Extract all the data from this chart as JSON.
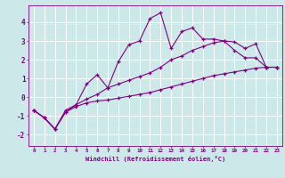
{
  "xlabel": "Windchill (Refroidissement éolien,°C)",
  "background_color": "#cce8e8",
  "line_color": "#800080",
  "grid_color": "#ffffff",
  "xlim": [
    -0.5,
    23.5
  ],
  "ylim": [
    -2.6,
    4.9
  ],
  "xticks": [
    0,
    1,
    2,
    3,
    4,
    5,
    6,
    7,
    8,
    9,
    10,
    11,
    12,
    13,
    14,
    15,
    16,
    17,
    18,
    19,
    20,
    21,
    22,
    23
  ],
  "yticks": [
    -2,
    -1,
    0,
    1,
    2,
    3,
    4
  ],
  "series": [
    {
      "x": [
        0,
        1,
        2,
        3,
        4,
        5,
        6,
        7,
        8,
        9,
        10,
        11,
        12,
        13,
        14,
        15,
        16,
        17,
        18,
        19,
        20,
        21,
        22,
        23
      ],
      "y": [
        -0.7,
        -1.1,
        -1.7,
        -0.8,
        -0.5,
        -0.3,
        -0.2,
        -0.15,
        -0.05,
        0.05,
        0.15,
        0.25,
        0.4,
        0.55,
        0.7,
        0.85,
        1.0,
        1.15,
        1.25,
        1.35,
        1.45,
        1.55,
        1.6,
        1.6
      ]
    },
    {
      "x": [
        0,
        1,
        2,
        3,
        4,
        5,
        6,
        7,
        8,
        9,
        10,
        11,
        12,
        13,
        14,
        15,
        16,
        17,
        18,
        19,
        20,
        21,
        22,
        23
      ],
      "y": [
        -0.7,
        -1.1,
        -1.7,
        -0.7,
        -0.4,
        -0.1,
        0.15,
        0.5,
        0.7,
        0.9,
        1.1,
        1.3,
        1.6,
        2.0,
        2.2,
        2.5,
        2.7,
        2.9,
        3.0,
        2.95,
        2.6,
        2.85,
        1.6,
        1.6
      ]
    },
    {
      "x": [
        0,
        1,
        2,
        3,
        4,
        5,
        6,
        7,
        8,
        9,
        10,
        11,
        12,
        13,
        14,
        15,
        16,
        17,
        18,
        19,
        20,
        21,
        22,
        23
      ],
      "y": [
        -0.7,
        -1.1,
        -1.7,
        -0.8,
        -0.4,
        0.7,
        1.2,
        0.5,
        1.9,
        2.8,
        3.0,
        4.2,
        4.5,
        2.6,
        3.5,
        3.7,
        3.1,
        3.1,
        3.0,
        2.5,
        2.1,
        2.1,
        1.6,
        1.6
      ]
    }
  ]
}
